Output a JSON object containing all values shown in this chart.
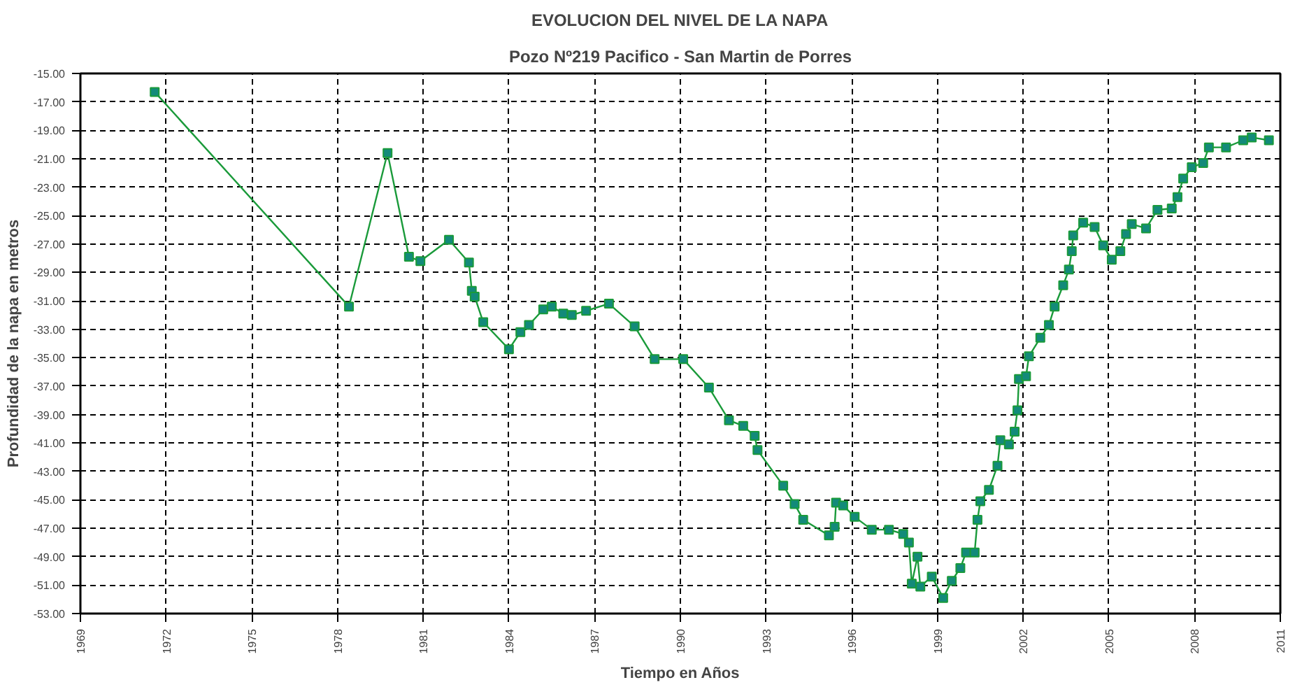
{
  "chart_data": {
    "type": "line",
    "title": "EVOLUCION DEL NIVEL DE LA NAPA",
    "subtitle": "Pozo Nº219 Pacifico - San Martin de Porres",
    "xlabel": "Tiempo en Años",
    "ylabel": "Profundidad de la napa en metros",
    "xlim": [
      1969,
      2011
    ],
    "xticks": [
      1969,
      1972,
      1975,
      1978,
      1981,
      1984,
      1987,
      1990,
      1993,
      1996,
      1999,
      2002,
      2005,
      2008,
      2011
    ],
    "ylim": [
      -53,
      -15
    ],
    "yticks": [
      {
        "value": -15,
        "label": "-15.00"
      },
      {
        "value": -17,
        "label": "-17.00"
      },
      {
        "value": -19,
        "label": "-19.00"
      },
      {
        "value": -21,
        "label": "-21.00"
      },
      {
        "value": -23,
        "label": "-23.00"
      },
      {
        "value": -25,
        "label": "-25.00"
      },
      {
        "value": -27,
        "label": "-27.00"
      },
      {
        "value": -29,
        "label": "-29.00"
      },
      {
        "value": -31,
        "label": "-31.00"
      },
      {
        "value": -33,
        "label": "-33.00"
      },
      {
        "value": -35,
        "label": "-35.00"
      },
      {
        "value": -37,
        "label": "-37.00"
      },
      {
        "value": -39,
        "label": "-39.00"
      },
      {
        "value": -41,
        "label": "-41.00"
      },
      {
        "value": -43,
        "label": "-43.00"
      },
      {
        "value": -45,
        "label": "-45.00"
      },
      {
        "value": -47,
        "label": "-47.00"
      },
      {
        "value": -49,
        "label": "-49.00"
      },
      {
        "value": -51,
        "label": "-51.00"
      },
      {
        "value": -53,
        "label": "-53.00"
      }
    ],
    "grid": true,
    "marker": "square",
    "line_style": "solid",
    "series": [
      {
        "color": "#1a9a3a",
        "x": [
          1971.6,
          1978.4,
          1979.75,
          1980.5,
          1980.9,
          1981.9,
          1982.6,
          1982.7,
          1982.8,
          1983.1,
          1984.0,
          1984.4,
          1984.7,
          1985.2,
          1985.5,
          1985.9,
          1986.2,
          1986.7,
          1987.5,
          1988.4,
          1989.1,
          1990.1,
          1991.0,
          1991.7,
          1992.2,
          1992.6,
          1992.7,
          1993.6,
          1994.0,
          1994.3,
          1995.2,
          1995.4,
          1995.45,
          1995.7,
          1996.1,
          1996.7,
          1997.3,
          1997.8,
          1998.0,
          1998.1,
          1998.3,
          1998.4,
          1998.8,
          1999.2,
          1999.5,
          1999.8,
          2000.0,
          2000.3,
          2000.4,
          2000.5,
          2000.8,
          2001.1,
          2001.2,
          2001.5,
          2001.7,
          2001.8,
          2001.85,
          2002.1,
          2002.2,
          2002.6,
          2002.9,
          2003.1,
          2003.4,
          2003.6,
          2003.7,
          2003.75,
          2004.1,
          2004.5,
          2004.8,
          2005.1,
          2005.4,
          2005.6,
          2005.8,
          2006.3,
          2006.7,
          2007.2,
          2007.4,
          2007.6,
          2007.9,
          2008.3,
          2008.5,
          2009.1,
          2009.7,
          2010.0,
          2010.6
        ],
        "values": [
          -16.3,
          -31.4,
          -20.6,
          -27.9,
          -28.2,
          -26.7,
          -28.3,
          -30.3,
          -30.7,
          -32.5,
          -34.4,
          -33.2,
          -32.7,
          -31.6,
          -31.4,
          -31.9,
          -32.0,
          -31.7,
          -31.2,
          -32.8,
          -35.1,
          -35.1,
          -37.1,
          -39.4,
          -39.8,
          -40.5,
          -41.5,
          -44.0,
          -45.3,
          -46.4,
          -47.5,
          -46.9,
          -45.2,
          -45.4,
          -46.2,
          -47.1,
          -47.1,
          -47.4,
          -48.0,
          -50.9,
          -49.0,
          -51.1,
          -50.4,
          -51.9,
          -50.7,
          -49.8,
          -48.7,
          -48.7,
          -46.4,
          -45.1,
          -44.3,
          -42.6,
          -40.8,
          -41.1,
          -40.2,
          -38.7,
          -36.5,
          -36.3,
          -34.9,
          -33.6,
          -32.7,
          -31.4,
          -29.9,
          -28.8,
          -27.5,
          -26.4,
          -25.5,
          -25.8,
          -27.1,
          -28.1,
          -27.5,
          -26.3,
          -25.6,
          -25.9,
          -24.6,
          -24.5,
          -23.7,
          -22.4,
          -21.6,
          -21.3,
          -20.2,
          -20.2,
          -19.7,
          -19.5,
          -19.7
        ]
      }
    ]
  }
}
